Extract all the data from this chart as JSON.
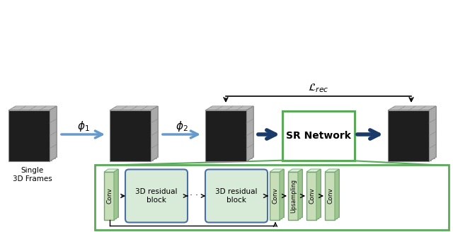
{
  "bg_color": "#ffffff",
  "green_edge": "#5aaa5a",
  "green_fill_slab": "#c8deb8",
  "green_slab_edge": "#6aaa6a",
  "green_slab_dark": "#a0c490",
  "green_slab_top": "#dceeda",
  "blue_arrow": "#6699cc",
  "dark_blue_arrow": "#1a3a6a",
  "rounded_fill": "#d8ead8",
  "rounded_edge": "#4a6fa5",
  "sr_box_fill": "#ffffff",
  "sr_box_edge": "#5aaa5a",
  "cube_front": "#282828",
  "cube_edge": "#888888",
  "cube_top": "#cccccc",
  "cube_right": "#aaaaaa",
  "cube_back": "#e0e0e0",
  "lrec": "$\\mathcal{L}_{rec}$",
  "phi1": "$\\phi_1$",
  "phi2": "$\\phi_2$"
}
